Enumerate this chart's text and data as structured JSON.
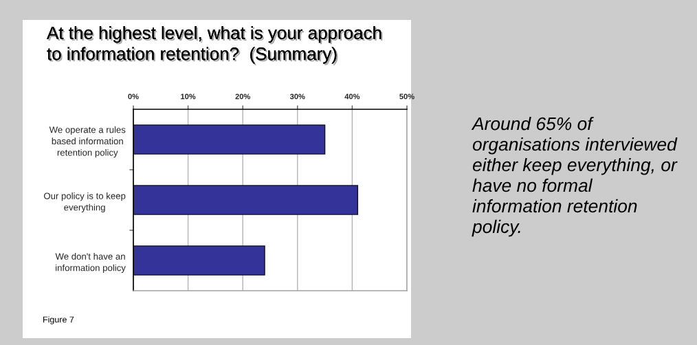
{
  "chart_data": {
    "type": "bar",
    "orientation": "horizontal",
    "title": "At the highest level, what is your approach\nto information retention?  (Summary)",
    "categories": [
      "We operate a rules\nbased information\nretention policy",
      "Our policy is to keep\neverything",
      "We don't have an\ninformation policy"
    ],
    "values": [
      35,
      41,
      24
    ],
    "color": "#333399",
    "xlim": [
      0,
      50
    ],
    "xticks": [
      {
        "value": 0,
        "label": "0%"
      },
      {
        "value": 10,
        "label": "10%"
      },
      {
        "value": 20,
        "label": "20%"
      },
      {
        "value": 30,
        "label": "30%"
      },
      {
        "value": 40,
        "label": "40%"
      },
      {
        "value": 50,
        "label": "50%"
      }
    ],
    "grid": "x",
    "annotations": [
      "Around 65% of\norganisations interviewed\neither keep everything, or\nhave no formal\ninformation retention\npolicy.",
      "Figure 7"
    ]
  }
}
